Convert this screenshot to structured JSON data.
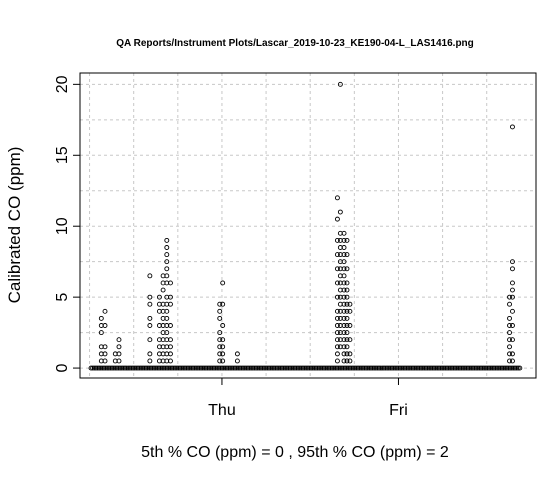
{
  "chart_data": {
    "type": "scatter",
    "title": "QA Reports/Instrument Plots/Lascar_2019-10-23_KE190-04-L_LAS1416.png",
    "xlabel": "5th % CO (ppm) =  0 , 95th % CO (ppm)  =  2",
    "ylabel": "Calibrated CO (ppm)",
    "xlim_hours": [
      0,
      62
    ],
    "ylim": [
      -0.7,
      20.8
    ],
    "grid": true,
    "x_ticks": [
      {
        "label": "Thu",
        "hour": 19.3
      },
      {
        "label": "Fri",
        "hour": 43.3
      }
    ],
    "y_ticks": [
      0,
      5,
      10,
      15,
      20
    ],
    "grid_x_hours": [
      1.3,
      7.3,
      13.3,
      19.3,
      25.3,
      31.3,
      37.3,
      43.3,
      49.3,
      55.3
    ],
    "grid_y": [
      0,
      2.5,
      5,
      7.5,
      10,
      12.5,
      15,
      17.5,
      20
    ],
    "baseline_segments": [
      [
        1.5,
        60.0
      ]
    ],
    "columns": [
      {
        "hour": 2.9,
        "values": [
          0.5,
          1.0,
          1.5,
          2.5,
          3.0,
          3.5
        ]
      },
      {
        "hour": 3.4,
        "values": [
          0.5,
          1.0,
          1.5,
          3.0,
          4.0
        ]
      },
      {
        "hour": 4.8,
        "values": [
          0.5,
          1.0
        ]
      },
      {
        "hour": 5.3,
        "values": [
          0.5,
          1.0,
          1.5,
          2.0
        ]
      },
      {
        "hour": 9.5,
        "values": [
          0.5,
          1.0,
          2.0,
          3.0,
          3.5,
          4.5,
          5.0,
          6.5
        ]
      },
      {
        "hour": 10.8,
        "values": [
          0.5,
          1.0,
          1.5,
          2.0,
          3.0,
          4.0,
          4.5,
          5.0
        ]
      },
      {
        "hour": 11.3,
        "values": [
          0.5,
          1.0,
          1.5,
          2.0,
          2.5,
          3.0,
          3.5,
          4.0,
          4.5,
          5.5,
          6.0,
          6.5
        ]
      },
      {
        "hour": 11.8,
        "values": [
          0.5,
          1.0,
          1.5,
          2.0,
          2.5,
          3.0,
          3.5,
          4.0,
          4.5,
          5.0,
          6.0,
          6.5,
          7.0,
          7.5,
          8.0,
          8.5,
          9.0
        ]
      },
      {
        "hour": 12.3,
        "values": [
          0.5,
          1.0,
          1.5,
          2.0,
          3.0,
          4.5,
          5.0,
          6.0
        ]
      },
      {
        "hour": 19.0,
        "values": [
          0.5,
          1.0,
          1.5,
          2.0,
          2.5,
          3.5,
          4.0,
          4.5
        ]
      },
      {
        "hour": 19.4,
        "values": [
          0.5,
          1.0,
          1.5,
          2.0,
          3.0,
          4.5,
          6.0
        ]
      },
      {
        "hour": 21.4,
        "values": [
          0.5,
          1.0
        ]
      },
      {
        "hour": 35.0,
        "values": [
          0.5,
          1.0,
          1.5,
          2.0,
          2.5,
          3.0,
          3.5,
          4.0,
          5.0,
          6.0,
          7.0,
          8.0,
          9.0,
          10.5,
          12.0
        ]
      },
      {
        "hour": 35.4,
        "values": [
          1.5,
          2.0,
          2.5,
          3.0,
          3.5,
          4.0,
          4.5,
          5.0,
          5.5,
          6.0,
          6.5,
          7.0,
          7.5,
          8.0,
          8.5,
          9.0,
          9.5,
          11.0,
          20.0
        ]
      },
      {
        "hour": 35.9,
        "values": [
          0.5,
          1.0,
          1.5,
          2.0,
          2.5,
          3.0,
          3.5,
          4.0,
          4.5,
          5.0,
          5.5,
          6.0,
          6.5,
          7.0,
          7.5,
          8.0,
          8.5,
          9.0,
          9.5
        ]
      },
      {
        "hour": 36.3,
        "values": [
          0.5,
          1.0,
          1.5,
          2.0,
          2.5,
          3.0,
          3.5,
          4.0,
          4.5,
          5.0,
          5.5,
          6.0,
          7.0,
          8.0,
          9.0
        ]
      },
      {
        "hour": 36.7,
        "values": [
          0.5,
          1.0,
          2.0,
          3.0,
          4.0,
          4.5
        ]
      },
      {
        "hour": 58.4,
        "values": [
          0.5,
          1.0,
          1.5,
          2.0,
          2.5,
          3.0,
          3.5,
          4.5,
          5.0
        ]
      },
      {
        "hour": 58.8,
        "values": [
          0.5,
          1.0,
          2.0,
          3.0,
          4.0,
          5.0,
          5.5,
          6.0,
          7.0,
          7.5,
          17.0
        ]
      }
    ]
  }
}
